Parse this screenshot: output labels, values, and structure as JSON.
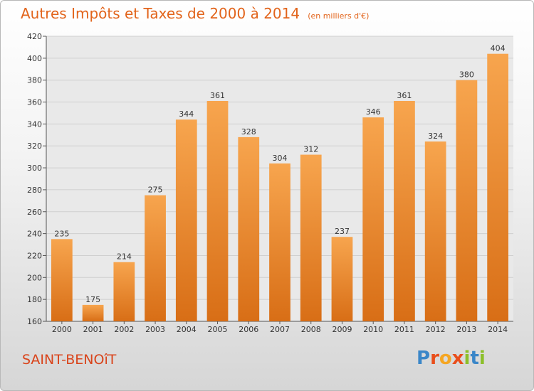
{
  "chart_data": {
    "type": "bar",
    "title": "Autres Impôts et Taxes de 2000 à 2014",
    "unit": "(en milliers d'€)",
    "categories": [
      "2000",
      "2001",
      "2002",
      "2003",
      "2004",
      "2005",
      "2006",
      "2007",
      "2008",
      "2009",
      "2010",
      "2011",
      "2012",
      "2013",
      "2014"
    ],
    "values": [
      235,
      175,
      214,
      275,
      344,
      361,
      328,
      304,
      312,
      237,
      346,
      361,
      324,
      380,
      404
    ],
    "ylim": [
      160,
      420
    ],
    "yticks": [
      160,
      180,
      200,
      220,
      240,
      260,
      280,
      300,
      320,
      340,
      360,
      380,
      400,
      420
    ],
    "grid": true,
    "bar_color_top": "#f7a54e",
    "bar_color_bottom": "#d86e16"
  },
  "place_name": "SAINT-BENOîT",
  "logo": {
    "text": "Proxiti",
    "letters": [
      "P",
      "r",
      "o",
      "x",
      "i",
      "t",
      "i"
    ],
    "colors": [
      "#3a86c8",
      "#e94e1b",
      "#f5a623",
      "#e94e1b",
      "#8cbf2a",
      "#3a86c8",
      "#8cbf2a"
    ]
  }
}
